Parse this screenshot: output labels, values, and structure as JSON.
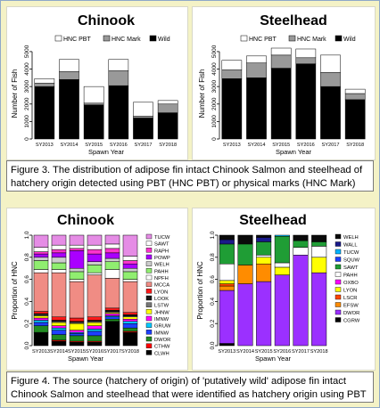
{
  "captions": {
    "fig3": "Figure 3. The distribution of adipose fin intact Chinook Salmon and steelhead of hatchery origin detected using PBT (HNC PBT) or physical marks (HNC Mark)",
    "fig4": "Figure 4. The source (hatchery of origin) of 'putatively wild' adipose fin intact Chinook Salmon and steelhead that were identified as hatchery origin using PBT"
  },
  "chart_data": [
    {
      "type": "bar",
      "stacked": true,
      "title": "Chinook",
      "xlabel": "Spawn Year",
      "ylabel": "Number of Fish",
      "yticks": [
        0,
        1000,
        2000,
        3000,
        4000,
        5000
      ],
      "ylim": [
        0,
        5200
      ],
      "categories": [
        "SY2013",
        "SY2014",
        "SY2015",
        "SY2016",
        "SY2017",
        "SY2018"
      ],
      "legend": "top",
      "series": [
        {
          "name": "Wild",
          "color": "#000000",
          "values": [
            3000,
            3400,
            1950,
            3050,
            1200,
            1500
          ]
        },
        {
          "name": "HNC Mark",
          "color": "#999999",
          "values": [
            200,
            450,
            100,
            850,
            100,
            500
          ]
        },
        {
          "name": "HNC PBT",
          "color": "#ffffff",
          "values": [
            250,
            700,
            950,
            650,
            800,
            200
          ]
        }
      ]
    },
    {
      "type": "bar",
      "stacked": true,
      "title": "Steelhead",
      "xlabel": "Spawn Year",
      "ylabel": "Number of Fish",
      "yticks": [
        0,
        1000,
        2000,
        3000,
        4000,
        5000
      ],
      "ylim": [
        0,
        5200
      ],
      "categories": [
        "SY2013",
        "SY2014",
        "SY2015",
        "SY2016",
        "SY2017",
        "SY2018"
      ],
      "legend": "top",
      "series": [
        {
          "name": "Wild",
          "color": "#000000",
          "values": [
            3450,
            3500,
            4050,
            4300,
            3000,
            2250
          ]
        },
        {
          "name": "HNC Mark",
          "color": "#999999",
          "values": [
            500,
            850,
            750,
            350,
            800,
            350
          ]
        },
        {
          "name": "HNC PBT",
          "color": "#ffffff",
          "values": [
            550,
            400,
            400,
            500,
            1000,
            250
          ]
        }
      ]
    },
    {
      "type": "bar",
      "stacked": true,
      "title": "Chinook",
      "xlabel": "Spawn Year",
      "ylabel": "Proportion of HNC",
      "yticks": [
        0.0,
        0.2,
        0.4,
        0.6,
        0.8,
        1.0
      ],
      "ylim": [
        0,
        1
      ],
      "categories": [
        "SY2013",
        "SY2014",
        "SY2015",
        "SY2016",
        "SY2017",
        "SY2018"
      ],
      "legend": "right",
      "series": [
        {
          "name": "CLWH",
          "color": "#000000",
          "values": [
            0.12,
            0.04,
            0.03,
            0.03,
            0.22,
            0.12
          ]
        },
        {
          "name": "CTHW",
          "color": "#ff0000",
          "values": [
            0.0,
            0.01,
            0.01,
            0.01,
            0.0,
            0.01
          ]
        },
        {
          "name": "DWOR",
          "color": "#228b22",
          "values": [
            0.06,
            0.05,
            0.05,
            0.05,
            0.02,
            0.03
          ]
        },
        {
          "name": "IMNW",
          "color": "#1e40ff",
          "values": [
            0.03,
            0.04,
            0.02,
            0.04,
            0.02,
            0.04
          ]
        },
        {
          "name": "GRUW",
          "color": "#00c8ff",
          "values": [
            0.02,
            0.02,
            0.01,
            0.02,
            0.01,
            0.02
          ]
        },
        {
          "name": "IMNW",
          "color": "#ff00ff",
          "values": [
            0.02,
            0.02,
            0.02,
            0.03,
            0.02,
            0.02
          ]
        },
        {
          "name": "JHNW",
          "color": "#ffff00",
          "values": [
            0.02,
            0.03,
            0.06,
            0.03,
            0.01,
            0.02
          ]
        },
        {
          "name": "LSTW",
          "color": "#777777",
          "values": [
            0.01,
            0.01,
            0.01,
            0.01,
            0.01,
            0.01
          ]
        },
        {
          "name": "LOOK",
          "color": "#1a1a1a",
          "values": [
            0.01,
            0.01,
            0.01,
            0.01,
            0.01,
            0.01
          ]
        },
        {
          "name": "LYON",
          "color": "#ff1a1a",
          "values": [
            0.02,
            0.03,
            0.03,
            0.03,
            0.02,
            0.02
          ]
        },
        {
          "name": "MCCA",
          "color": "#f08c84",
          "values": [
            0.35,
            0.4,
            0.33,
            0.38,
            0.27,
            0.28
          ]
        },
        {
          "name": "NPFH",
          "color": "#ffffff",
          "values": [
            0.03,
            0.03,
            0.02,
            0.02,
            0.08,
            0.02
          ]
        },
        {
          "name": "PAHH",
          "color": "#90ee70",
          "values": [
            0.08,
            0.06,
            0.07,
            0.07,
            0.07,
            0.07
          ]
        },
        {
          "name": "WELH",
          "color": "#cccccc",
          "values": [
            0.03,
            0.05,
            0.03,
            0.03,
            0.03,
            0.03
          ]
        },
        {
          "name": "POWP",
          "color": "#aa00ff",
          "values": [
            0.03,
            0.04,
            0.16,
            0.07,
            0.05,
            0.04
          ]
        },
        {
          "name": "RAPH",
          "color": "#ff33cc",
          "values": [
            0.02,
            0.03,
            0.02,
            0.04,
            0.04,
            0.03
          ]
        },
        {
          "name": "SAWT",
          "color": "#ffffff",
          "values": [
            0.04,
            0.04,
            0.03,
            0.04,
            0.04,
            0.04
          ]
        },
        {
          "name": "TUCW",
          "color": "#e58ce5",
          "values": [
            0.11,
            0.09,
            0.09,
            0.09,
            0.08,
            0.19
          ]
        }
      ]
    },
    {
      "type": "bar",
      "stacked": true,
      "title": "Steelhead",
      "xlabel": "Spawn Year",
      "ylabel": "Proportion of HNC",
      "yticks": [
        0.0,
        0.2,
        0.4,
        0.6,
        0.8,
        1.0
      ],
      "ylim": [
        0,
        1
      ],
      "categories": [
        "SY2013",
        "SY2014",
        "SY2015",
        "SY2016",
        "SY2017",
        "SY2018"
      ],
      "legend": "right",
      "series": [
        {
          "name": "CGRW",
          "color": "#000000",
          "values": [
            0.02,
            0.0,
            0.0,
            0.0,
            0.0,
            0.0
          ]
        },
        {
          "name": "DWOR",
          "color": "#9b30ff",
          "values": [
            0.48,
            0.56,
            0.58,
            0.64,
            0.82,
            0.66
          ]
        },
        {
          "name": "EFSW",
          "color": "#ff8c00",
          "values": [
            0.04,
            0.17,
            0.16,
            0.0,
            0.0,
            0.0
          ]
        },
        {
          "name": "LSCR",
          "color": "#ff4500",
          "values": [
            0.02,
            0.0,
            0.0,
            0.0,
            0.0,
            0.0
          ]
        },
        {
          "name": "LYON",
          "color": "#ffff00",
          "values": [
            0.03,
            0.0,
            0.06,
            0.07,
            0.0,
            0.14
          ]
        },
        {
          "name": "OXBO",
          "color": "#ff00ff",
          "values": [
            0.0,
            0.0,
            0.0,
            0.0,
            0.0,
            0.0
          ]
        },
        {
          "name": "PAHH",
          "color": "#ffffff",
          "values": [
            0.15,
            0.0,
            0.02,
            0.04,
            0.07,
            0.1
          ]
        },
        {
          "name": "SAWT",
          "color": "#1f9d35",
          "values": [
            0.18,
            0.19,
            0.12,
            0.24,
            0.06,
            0.04
          ]
        },
        {
          "name": "SQUW",
          "color": "#1e3cff",
          "values": [
            0.0,
            0.0,
            0.0,
            0.0,
            0.0,
            0.0
          ]
        },
        {
          "name": "TUCW",
          "color": "#00b4ff",
          "values": [
            0.0,
            0.0,
            0.0,
            0.01,
            0.0,
            0.0
          ]
        },
        {
          "name": "WALL",
          "color": "#1a1a8a",
          "values": [
            0.04,
            0.0,
            0.04,
            0.0,
            0.0,
            0.0
          ]
        },
        {
          "name": "WELH",
          "color": "#0a0a0a",
          "values": [
            0.04,
            0.08,
            0.02,
            0.0,
            0.05,
            0.06
          ]
        }
      ]
    }
  ]
}
